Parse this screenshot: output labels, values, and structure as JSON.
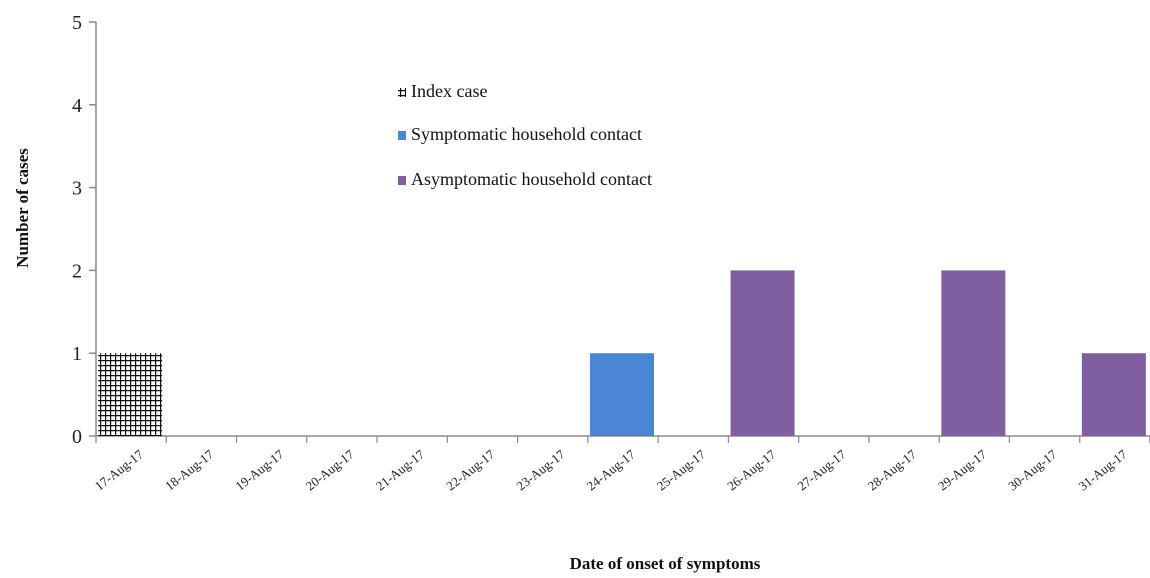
{
  "chart_data": {
    "type": "bar",
    "title": "",
    "xlabel": "Date of onset of symptoms",
    "ylabel": "Number of cases",
    "ylim": [
      0,
      5
    ],
    "yticks": [
      "0",
      "1",
      "2",
      "3",
      "4",
      "5"
    ],
    "categories": [
      "17-Aug-17",
      "18-Aug-17",
      "19-Aug-17",
      "20-Aug-17",
      "21-Aug-17",
      "22-Aug-17",
      "23-Aug-17",
      "24-Aug-17",
      "25-Aug-17",
      "26-Aug-17",
      "27-Aug-17",
      "28-Aug-17",
      "29-Aug-17",
      "30-Aug-17",
      "31-Aug-17"
    ],
    "series": [
      {
        "name": "Index case",
        "color": "#111111",
        "pattern": "grid",
        "values": [
          1,
          0,
          0,
          0,
          0,
          0,
          0,
          0,
          0,
          0,
          0,
          0,
          0,
          0,
          0
        ]
      },
      {
        "name": "Symptomatic household contact",
        "color": "#4a86d4",
        "values": [
          0,
          0,
          0,
          0,
          0,
          0,
          0,
          1,
          0,
          0,
          0,
          0,
          0,
          0,
          0
        ]
      },
      {
        "name": "Asymptomatic household contact",
        "color": "#7f5fa0",
        "values": [
          0,
          0,
          0,
          0,
          0,
          0,
          0,
          0,
          0,
          2,
          0,
          0,
          2,
          0,
          1
        ]
      }
    ],
    "legend_position": "top-center",
    "grid": false
  }
}
